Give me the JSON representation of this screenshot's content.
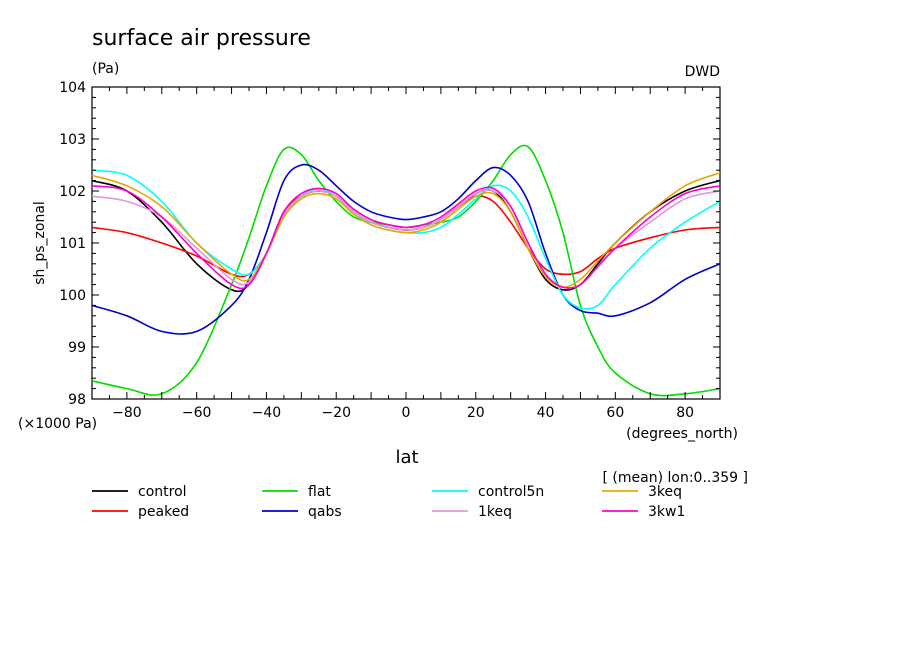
{
  "chart_data": {
    "type": "line",
    "title": "surface air pressure",
    "units": "(Pa)",
    "source_label": "DWD",
    "ylabel": "sh_ps_zonal",
    "xlabel": "lat",
    "xunits": "(degrees_north)",
    "yscale_note": "(×1000 Pa)",
    "subset_note": "[ (mean) lon:0..359 ]",
    "xlim": [
      -90,
      90
    ],
    "ylim": [
      98,
      104
    ],
    "xticks": [
      -80,
      -60,
      -40,
      -20,
      0,
      20,
      40,
      60,
      80
    ],
    "yticks": [
      98,
      99,
      100,
      101,
      102,
      103,
      104
    ],
    "grid": false,
    "legend_position": "bottom",
    "x": [
      -90,
      -80,
      -70,
      -60,
      -50,
      -45,
      -40,
      -35,
      -30,
      -25,
      -20,
      -15,
      -10,
      -5,
      0,
      5,
      10,
      15,
      20,
      25,
      30,
      35,
      40,
      45,
      50,
      55,
      60,
      70,
      80,
      90
    ],
    "series": [
      {
        "name": "control",
        "color": "#000000",
        "values": [
          102.2,
          102.0,
          101.4,
          100.6,
          100.1,
          100.2,
          100.8,
          101.6,
          101.9,
          102.0,
          101.9,
          101.6,
          101.4,
          101.3,
          101.25,
          101.3,
          101.45,
          101.7,
          101.95,
          102.0,
          101.6,
          100.9,
          100.3,
          100.1,
          100.2,
          100.6,
          101.0,
          101.6,
          102.0,
          102.2
        ]
      },
      {
        "name": "peaked",
        "color": "#ff0000",
        "values": [
          101.3,
          101.2,
          101.0,
          100.75,
          100.4,
          100.4,
          100.8,
          101.6,
          101.9,
          102.0,
          101.9,
          101.6,
          101.4,
          101.3,
          101.25,
          101.3,
          101.45,
          101.7,
          101.9,
          101.8,
          101.4,
          100.9,
          100.5,
          100.4,
          100.45,
          100.7,
          100.9,
          101.1,
          101.25,
          101.3
        ]
      },
      {
        "name": "flat",
        "color": "#00dd00",
        "values": [
          98.35,
          98.2,
          98.1,
          98.7,
          100.2,
          101.1,
          102.1,
          102.8,
          102.7,
          102.2,
          101.8,
          101.5,
          101.4,
          101.35,
          101.3,
          101.35,
          101.4,
          101.5,
          101.8,
          102.2,
          102.7,
          102.85,
          102.2,
          101.2,
          99.8,
          99.0,
          98.5,
          98.1,
          98.1,
          98.2
        ]
      },
      {
        "name": "qabs",
        "color": "#0000cc",
        "values": [
          99.8,
          99.6,
          99.3,
          99.3,
          99.8,
          100.3,
          101.2,
          102.2,
          102.5,
          102.4,
          102.1,
          101.8,
          101.6,
          101.5,
          101.45,
          101.5,
          101.6,
          101.85,
          102.2,
          102.45,
          102.3,
          101.8,
          100.8,
          100.0,
          99.7,
          99.65,
          99.6,
          99.85,
          100.3,
          100.6
        ]
      },
      {
        "name": "control5n",
        "color": "#00ffff",
        "values": [
          102.4,
          102.3,
          101.8,
          101.0,
          100.5,
          100.4,
          100.8,
          101.5,
          101.9,
          102.05,
          101.9,
          101.6,
          101.35,
          101.25,
          101.2,
          101.2,
          101.3,
          101.55,
          101.85,
          102.1,
          102.0,
          101.5,
          100.7,
          100.0,
          99.75,
          99.8,
          100.2,
          100.9,
          101.4,
          101.8
        ]
      },
      {
        "name": "1keq",
        "color": "#dd99dd",
        "values": [
          101.9,
          101.8,
          101.5,
          100.9,
          100.3,
          100.25,
          100.8,
          101.55,
          101.9,
          102.0,
          101.9,
          101.6,
          101.4,
          101.3,
          101.25,
          101.3,
          101.45,
          101.7,
          101.95,
          102.0,
          101.7,
          101.0,
          100.4,
          100.15,
          100.2,
          100.55,
          100.9,
          101.4,
          101.85,
          102.0
        ]
      },
      {
        "name": "3keq",
        "color": "#e6a800",
        "values": [
          102.3,
          102.1,
          101.7,
          101.0,
          100.4,
          100.3,
          100.8,
          101.5,
          101.85,
          101.95,
          101.85,
          101.55,
          101.35,
          101.25,
          101.2,
          101.25,
          101.4,
          101.65,
          101.9,
          101.95,
          101.6,
          100.9,
          100.35,
          100.15,
          100.3,
          100.65,
          101.0,
          101.6,
          102.1,
          102.35
        ]
      },
      {
        "name": "3kw1",
        "color": "#ff00cc",
        "values": [
          102.1,
          102.0,
          101.5,
          100.8,
          100.2,
          100.2,
          100.8,
          101.6,
          101.95,
          102.05,
          101.95,
          101.65,
          101.45,
          101.35,
          101.3,
          101.35,
          101.5,
          101.75,
          102.0,
          102.05,
          101.7,
          101.0,
          100.4,
          100.15,
          100.2,
          100.55,
          100.9,
          101.5,
          101.95,
          102.1
        ]
      }
    ]
  }
}
